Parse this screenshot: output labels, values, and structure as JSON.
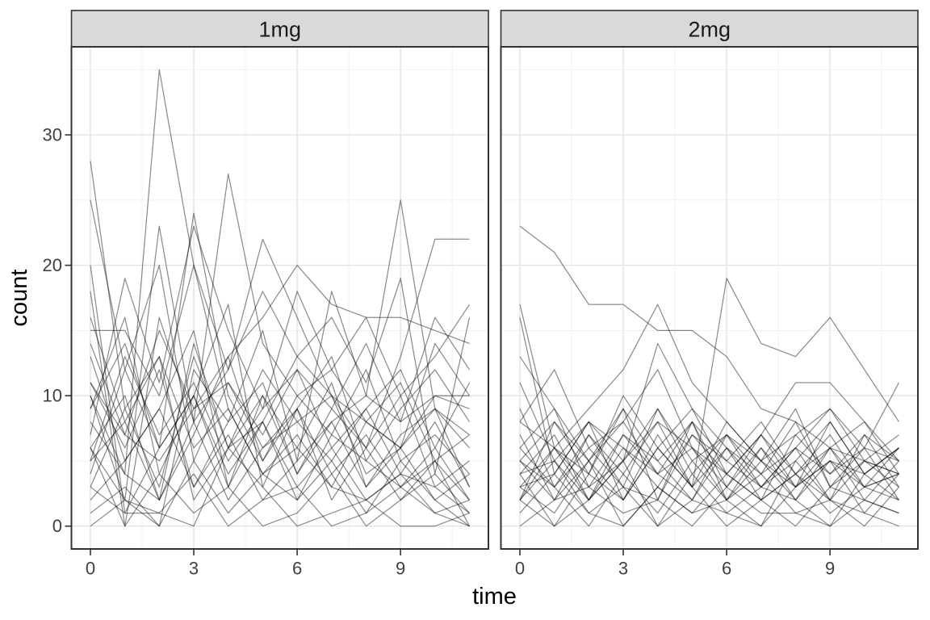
{
  "figure": {
    "colors": {
      "background": "#FFFFFF",
      "strip_fill": "#D9D9D9",
      "strip_border": "#333333",
      "panel_background": "#FFFFFF",
      "panel_border": "#333333",
      "grid_major": "#E3E3E3",
      "grid_minor": "#F1F1F1",
      "line": "#000000",
      "tick_mark": "#333333",
      "tick_label": "#404040",
      "axis_title": "#000000",
      "strip_label": "#1A1A1A"
    },
    "line_opacity": 0.45
  },
  "chart_data": {
    "type": "line",
    "title": "",
    "xlabel": "time",
    "ylabel": "count",
    "legend": "none",
    "grid": "on",
    "x": [
      0,
      1,
      2,
      3,
      4,
      5,
      6,
      7,
      8,
      9,
      10,
      11
    ],
    "x_ticks": [
      0,
      3,
      6,
      9
    ],
    "y_ticks": [
      0,
      10,
      20,
      30
    ],
    "x_minor": [
      1.5,
      4.5,
      7.5,
      10.5
    ],
    "y_minor": [
      5,
      15,
      25,
      35
    ],
    "xlim": [
      -0.55,
      11.55
    ],
    "ylim": [
      -1.75,
      36.75
    ],
    "facets": [
      {
        "label": "1mg",
        "series": [
          [
            8,
            4,
            35,
            20,
            9,
            4,
            6,
            3,
            2,
            4,
            1,
            0
          ],
          [
            28,
            9,
            3,
            13,
            6,
            8,
            3,
            6,
            2,
            4,
            3,
            1
          ],
          [
            25,
            12,
            6,
            24,
            10,
            5,
            9,
            4,
            7,
            3,
            5,
            2
          ],
          [
            6,
            2,
            23,
            8,
            27,
            14,
            10,
            12,
            8,
            6,
            9,
            7
          ],
          [
            15,
            15,
            10,
            20,
            12,
            22,
            16,
            10,
            8,
            6,
            14,
            10
          ],
          [
            5,
            8,
            2,
            14,
            6,
            10,
            4,
            8,
            10,
            25,
            9,
            3
          ],
          [
            9,
            14,
            6,
            10,
            3,
            8,
            13,
            10,
            6,
            13,
            22,
            22
          ],
          [
            11,
            7,
            15,
            9,
            13,
            16,
            20,
            17,
            16,
            16,
            15,
            14
          ],
          [
            18,
            0,
            16,
            8,
            12,
            18,
            13,
            16,
            11,
            19,
            4,
            16
          ],
          [
            7,
            19,
            11,
            23,
            15,
            9,
            18,
            12,
            16,
            10,
            13,
            17
          ],
          [
            10,
            2,
            0,
            12,
            8,
            15,
            5,
            18,
            10,
            8,
            16,
            12
          ],
          [
            4,
            12,
            20,
            5,
            11,
            7,
            12,
            9,
            14,
            8,
            10,
            10
          ],
          [
            16,
            8,
            13,
            2,
            6,
            12,
            8,
            5,
            9,
            12,
            6,
            11
          ],
          [
            9,
            16,
            4,
            10,
            17,
            3,
            9,
            13,
            5,
            9,
            12,
            8
          ],
          [
            13,
            5,
            9,
            15,
            3,
            10,
            6,
            11,
            3,
            7,
            9,
            6
          ],
          [
            6,
            10,
            2,
            7,
            13,
            5,
            10,
            7,
            12,
            5,
            7,
            4
          ],
          [
            11,
            6,
            12,
            3,
            8,
            11,
            4,
            9,
            6,
            10,
            3,
            5
          ],
          [
            5,
            13,
            7,
            11,
            5,
            9,
            12,
            6,
            9,
            4,
            8,
            3
          ],
          [
            14,
            7,
            5,
            9,
            11,
            6,
            8,
            10,
            4,
            6,
            10,
            9
          ],
          [
            3,
            9,
            13,
            6,
            9,
            4,
            7,
            3,
            8,
            11,
            5,
            7
          ],
          [
            20,
            1,
            6,
            10,
            4,
            8,
            2,
            7,
            5,
            3,
            6,
            2
          ],
          [
            2,
            5,
            9,
            3,
            7,
            2,
            5,
            8,
            3,
            6,
            2,
            4
          ],
          [
            10,
            4,
            2,
            8,
            2,
            6,
            9,
            2,
            6,
            2,
            4,
            1
          ],
          [
            1,
            3,
            0,
            5,
            1,
            4,
            2,
            5,
            1,
            3,
            1,
            2
          ],
          [
            6,
            0,
            4,
            1,
            3,
            0,
            1,
            4,
            0,
            2,
            5,
            0
          ],
          [
            0,
            2,
            1,
            0,
            6,
            3,
            0,
            1,
            2,
            0,
            0,
            1
          ],
          [
            3,
            1,
            1,
            4,
            0,
            2,
            3,
            0,
            1,
            5,
            2,
            0
          ]
        ]
      },
      {
        "label": "2mg",
        "series": [
          [
            23,
            21,
            17,
            17,
            15,
            15,
            13,
            9,
            8,
            6,
            5,
            4
          ],
          [
            2,
            8,
            4,
            10,
            6,
            3,
            19,
            14,
            13,
            16,
            12,
            8
          ],
          [
            3,
            6,
            9,
            12,
            17,
            11,
            8,
            5,
            7,
            9,
            6,
            11
          ],
          [
            16,
            4,
            8,
            5,
            14,
            9,
            6,
            3,
            5,
            8,
            4,
            6
          ],
          [
            13,
            9,
            5,
            8,
            12,
            6,
            4,
            7,
            11,
            11,
            8,
            5
          ],
          [
            8,
            12,
            6,
            3,
            9,
            5,
            7,
            4,
            6,
            9,
            5,
            7
          ],
          [
            17,
            6,
            2,
            7,
            4,
            8,
            3,
            6,
            2,
            5,
            3,
            4
          ],
          [
            11,
            5,
            8,
            2,
            6,
            9,
            4,
            7,
            3,
            6,
            8,
            4
          ],
          [
            6,
            9,
            3,
            7,
            5,
            8,
            2,
            5,
            9,
            3,
            6,
            5
          ],
          [
            5,
            2,
            7,
            4,
            8,
            3,
            6,
            2,
            4,
            7,
            3,
            6
          ],
          [
            8,
            6,
            4,
            9,
            2,
            7,
            5,
            8,
            4,
            2,
            5,
            3
          ],
          [
            4,
            7,
            2,
            5,
            9,
            4,
            7,
            3,
            6,
            4,
            7,
            5
          ],
          [
            9,
            3,
            6,
            8,
            4,
            6,
            2,
            6,
            3,
            8,
            4,
            6
          ],
          [
            5,
            8,
            5,
            2,
            7,
            3,
            8,
            5,
            2,
            6,
            3,
            4
          ],
          [
            3,
            4,
            8,
            6,
            3,
            7,
            4,
            2,
            7,
            4,
            6,
            2
          ],
          [
            7,
            2,
            5,
            9,
            5,
            2,
            6,
            4,
            8,
            3,
            5,
            4
          ],
          [
            2,
            6,
            3,
            5,
            8,
            6,
            3,
            7,
            4,
            6,
            2,
            5
          ],
          [
            6,
            3,
            7,
            3,
            2,
            8,
            5,
            3,
            6,
            2,
            7,
            3
          ],
          [
            4,
            5,
            2,
            6,
            4,
            2,
            7,
            5,
            3,
            5,
            4,
            6
          ],
          [
            2,
            0,
            4,
            2,
            6,
            3,
            0,
            2,
            4,
            1,
            3,
            2
          ],
          [
            5,
            3,
            0,
            4,
            1,
            5,
            2,
            0,
            3,
            5,
            1,
            4
          ],
          [
            3,
            1,
            5,
            0,
            3,
            1,
            4,
            2,
            0,
            3,
            2,
            1
          ],
          [
            1,
            4,
            1,
            3,
            0,
            2,
            1,
            3,
            2,
            0,
            4,
            2
          ],
          [
            0,
            2,
            3,
            1,
            2,
            0,
            3,
            1,
            1,
            2,
            0,
            3
          ],
          [
            4,
            0,
            2,
            5,
            0,
            4,
            1,
            0,
            5,
            2,
            1,
            0
          ],
          [
            2,
            5,
            1,
            0,
            3,
            1,
            2,
            4,
            1,
            0,
            2,
            1
          ]
        ]
      }
    ]
  }
}
